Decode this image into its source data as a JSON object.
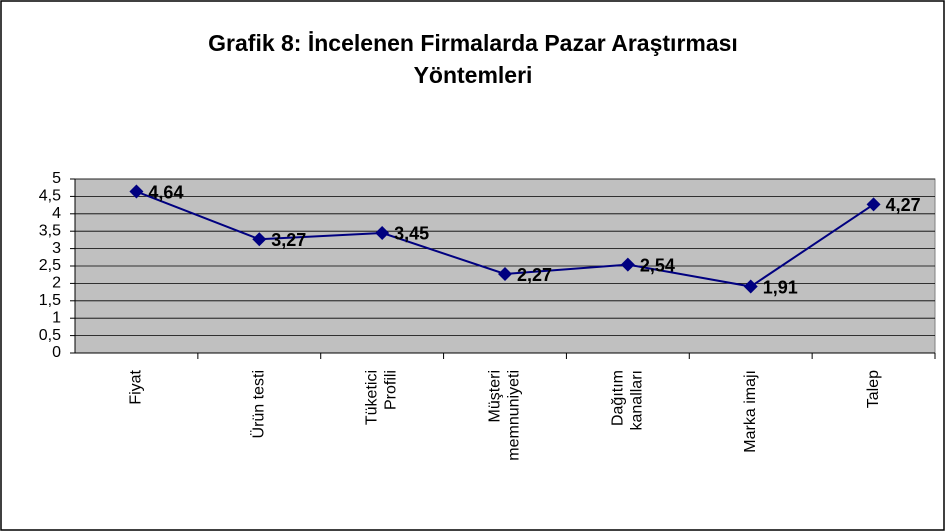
{
  "chart_data": {
    "type": "line",
    "title": "Grafik 8: İncelenen Firmalarda Pazar Araştırması\nYöntemleri",
    "categories": [
      "Fiyat",
      "Ürün testi",
      "Tüketici\nProfili",
      "Müşteri\nmemnuniyeti",
      "Dağıtım\nkanalları",
      "Marka imajı",
      "Talep"
    ],
    "series": [
      {
        "color": "#000080",
        "values": [
          4.64,
          3.27,
          3.45,
          2.27,
          2.54,
          1.91,
          4.27
        ],
        "value_labels": [
          "4,64",
          "3,27",
          "3,45",
          "2,27",
          "2,54",
          "1,91",
          "4,27"
        ]
      }
    ],
    "ylim": [
      0,
      5
    ],
    "yticks": [
      0,
      {
        "value": 0.5,
        "label": "0,5"
      },
      1,
      {
        "value": 1.5,
        "label": "1,5"
      },
      2,
      {
        "value": 2.5,
        "label": "2,5"
      },
      3,
      {
        "value": 3.5,
        "label": "3,5"
      },
      4,
      {
        "value": 4.5,
        "label": "4,5"
      },
      5
    ],
    "grid": true,
    "plot_background": "#c0c0c0"
  }
}
